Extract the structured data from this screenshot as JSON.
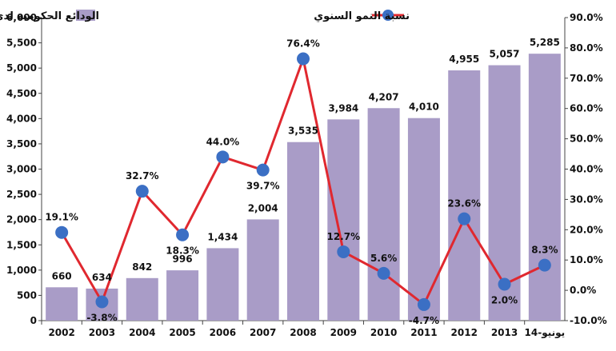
{
  "chart_data": {
    "type": "bar+line",
    "categories": [
      "2002",
      "2003",
      "2004",
      "2005",
      "2006",
      "2007",
      "2008",
      "2009",
      "2010",
      "2011",
      "2012",
      "2013",
      "يونيو-14"
    ],
    "series": [
      {
        "name": "الودائع الحكومية لدى البنوك الكويتية  (مليون دينار)",
        "type": "bar",
        "axis": "left",
        "color": "#a99cc7",
        "values": [
          660,
          634,
          842,
          996,
          1434,
          2004,
          3535,
          3984,
          4207,
          4010,
          4955,
          5057,
          5285
        ],
        "labels": [
          "660",
          "634",
          "842",
          "996",
          "1,434",
          "2,004",
          "3,535",
          "3,984",
          "4,207",
          "4,010",
          "4,955",
          "5,057",
          "5,285"
        ]
      },
      {
        "name": "نسبة النمو السنوي",
        "type": "line",
        "axis": "right",
        "line_color": "#e0282f",
        "marker_color": "#3b6fc4",
        "values": [
          19.1,
          -3.8,
          32.7,
          18.3,
          44.0,
          39.7,
          76.4,
          12.7,
          5.6,
          -4.7,
          23.6,
          2.0,
          8.3
        ],
        "labels": [
          "19.1%",
          "-3.8%",
          "32.7%",
          "18.3%",
          "44.0%",
          "39.7%",
          "76.4%",
          "12.7%",
          "5.6%",
          "-4.7%",
          "23.6%",
          "2.0%",
          "8.3%"
        ]
      }
    ],
    "y_left": {
      "min": 0,
      "max": 6000,
      "ticks": [
        "0",
        "500",
        "1,000",
        "1,500",
        "2,000",
        "2,500",
        "3,000",
        "3,500",
        "4,000",
        "4,500",
        "5,000",
        "5,500",
        "6,000"
      ]
    },
    "y_right": {
      "min": -10,
      "max": 90,
      "ticks": [
        "-10.0%",
        "0.0%",
        "10.0%",
        "20.0%",
        "30.0%",
        "40.0%",
        "50.0%",
        "60.0%",
        "70.0%",
        "80.0%",
        "90.0%"
      ]
    },
    "grid": false,
    "legend_position": "top"
  }
}
